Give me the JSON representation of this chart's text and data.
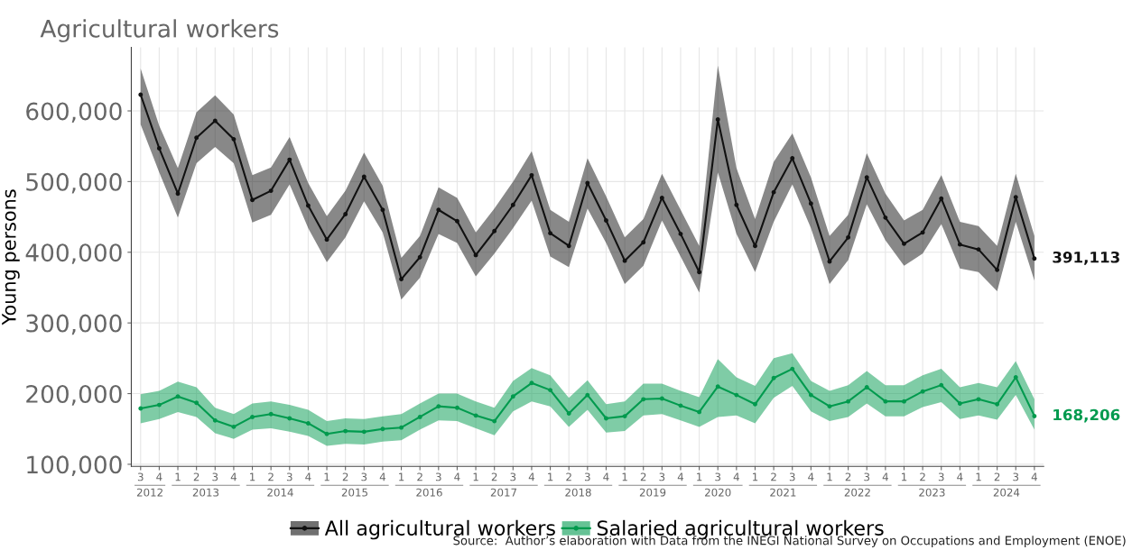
{
  "chart_data": {
    "type": "line",
    "title": "Agricultural workers",
    "ylabel": "Young persons",
    "categories": [
      "3",
      "4",
      "1",
      "2",
      "3",
      "4",
      "1",
      "2",
      "3",
      "4",
      "1",
      "2",
      "3",
      "4",
      "1",
      "2",
      "3",
      "4",
      "1",
      "2",
      "3",
      "4",
      "1",
      "2",
      "3",
      "4",
      "1",
      "2",
      "3",
      "4",
      "1",
      "3",
      "4",
      "1",
      "2",
      "3",
      "4",
      "1",
      "2",
      "3",
      "4",
      "1",
      "2",
      "3",
      "4",
      "1",
      "2",
      "3",
      "4"
    ],
    "ylim": [
      97000,
      690000
    ],
    "yticks": [
      {
        "value": 100000,
        "label": "100,000"
      },
      {
        "value": 200000,
        "label": "200,000"
      },
      {
        "value": 300000,
        "label": "300,000"
      },
      {
        "value": 400000,
        "label": "400,000"
      },
      {
        "value": 500000,
        "label": "500,000"
      },
      {
        "value": 600000,
        "label": "600,000"
      }
    ],
    "series": [
      {
        "name": "All agricultural workers",
        "color": "#111111",
        "values": [
          623000,
          547000,
          483000,
          562000,
          586000,
          560000,
          474000,
          487000,
          531000,
          466000,
          418000,
          454000,
          507000,
          460000,
          362000,
          393000,
          460000,
          444000,
          396000,
          430000,
          467000,
          509000,
          427000,
          409000,
          498000,
          445000,
          388000,
          414000,
          477000,
          426000,
          372000,
          588000,
          467000,
          409000,
          485000,
          533000,
          469000,
          387000,
          421000,
          506000,
          449000,
          412000,
          428000,
          476000,
          411000,
          404000,
          375000,
          478000,
          391113
        ],
        "lower": [
          581000,
          513000,
          449000,
          526000,
          549000,
          526000,
          442000,
          453000,
          496000,
          434000,
          386000,
          421000,
          472000,
          428000,
          333000,
          364000,
          426000,
          413000,
          366000,
          398000,
          434000,
          473000,
          394000,
          379000,
          462000,
          413000,
          355000,
          381000,
          445000,
          394000,
          343000,
          513000,
          426000,
          372000,
          443000,
          496000,
          434000,
          355000,
          389000,
          468000,
          417000,
          381000,
          398000,
          440000,
          377000,
          372000,
          345000,
          443000,
          360000
        ],
        "upper": [
          660000,
          579000,
          519000,
          598000,
          622000,
          595000,
          509000,
          520000,
          563000,
          498000,
          451000,
          487000,
          541000,
          494000,
          392000,
          423000,
          492000,
          477000,
          428000,
          462000,
          500000,
          543000,
          460000,
          443000,
          533000,
          479000,
          421000,
          447000,
          511000,
          460000,
          409000,
          664000,
          519000,
          447000,
          528000,
          568000,
          506000,
          423000,
          453000,
          540000,
          483000,
          445000,
          460000,
          509000,
          443000,
          437000,
          409000,
          511000,
          423000
        ],
        "value_labels": [
          null,
          null,
          null,
          null,
          null,
          null,
          null,
          null,
          null,
          null,
          null,
          null,
          null,
          null,
          null,
          null,
          null,
          null,
          null,
          null,
          null,
          null,
          null,
          null,
          null,
          null,
          null,
          null,
          null,
          null,
          null,
          null,
          null,
          null,
          null,
          null,
          null,
          null,
          null,
          null,
          null,
          null,
          null,
          null,
          null,
          null,
          null,
          null,
          "391,113"
        ]
      },
      {
        "name": "Salaried agricultural workers",
        "color": "#009a4e",
        "values": [
          179000,
          184000,
          196000,
          187000,
          162000,
          153000,
          167000,
          171000,
          165000,
          158000,
          143000,
          147000,
          146000,
          150000,
          152000,
          167000,
          182000,
          180000,
          169000,
          161000,
          196000,
          215000,
          205000,
          172000,
          198000,
          165000,
          168000,
          192000,
          193000,
          183000,
          174000,
          210000,
          198000,
          185000,
          222000,
          235000,
          198000,
          182000,
          189000,
          209000,
          189000,
          189000,
          203000,
          212000,
          186000,
          192000,
          185000,
          223000,
          168206
        ],
        "lower": [
          158000,
          164000,
          174000,
          167000,
          144000,
          136000,
          149000,
          151000,
          146000,
          140000,
          126000,
          129000,
          128000,
          132000,
          134000,
          149000,
          162000,
          161000,
          151000,
          141000,
          175000,
          189000,
          182000,
          153000,
          177000,
          145000,
          147000,
          169000,
          171000,
          162000,
          153000,
          167000,
          169000,
          158000,
          194000,
          211000,
          175000,
          161000,
          167000,
          186000,
          168000,
          168000,
          181000,
          188000,
          164000,
          169000,
          163000,
          198000,
          149000
        ],
        "upper": [
          199000,
          204000,
          217000,
          209000,
          180000,
          171000,
          186000,
          189000,
          184000,
          177000,
          161000,
          165000,
          164000,
          168000,
          171000,
          186000,
          200000,
          200000,
          189000,
          180000,
          218000,
          236000,
          226000,
          194000,
          219000,
          185000,
          189000,
          214000,
          214000,
          204000,
          195000,
          249000,
          223000,
          211000,
          250000,
          257000,
          218000,
          204000,
          212000,
          232000,
          212000,
          212000,
          226000,
          235000,
          209000,
          215000,
          209000,
          246000,
          192000
        ],
        "value_labels": [
          null,
          null,
          null,
          null,
          null,
          null,
          null,
          null,
          null,
          null,
          null,
          null,
          null,
          null,
          null,
          null,
          null,
          null,
          null,
          null,
          null,
          null,
          null,
          null,
          null,
          null,
          null,
          null,
          null,
          null,
          null,
          null,
          null,
          null,
          null,
          null,
          null,
          null,
          null,
          null,
          null,
          null,
          null,
          null,
          null,
          null,
          null,
          null,
          "168,206"
        ]
      }
    ],
    "marker": "circle",
    "line_style": "solid",
    "grid": true,
    "legend": "bottom",
    "annotations": [
      "2012",
      "2013",
      "2014",
      "2015",
      "2016",
      "2017",
      "2018",
      "2019",
      "2020",
      "2021",
      "2022",
      "2023",
      "2024",
      "Source:  Author’s elaboration with Data from the INEGI National Survey on Occupations and Employment (ENOE)"
    ]
  }
}
